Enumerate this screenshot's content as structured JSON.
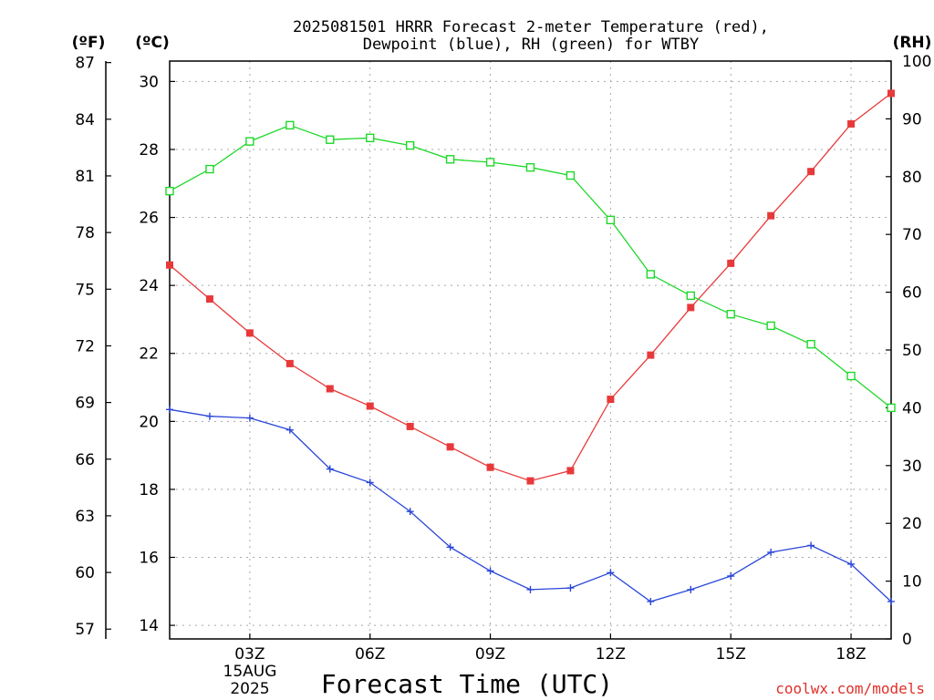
{
  "chart_data": {
    "type": "line",
    "title_line1": "2025081501 HRRR Forecast 2-meter Temperature (red),",
    "title_line2": "Dewpoint (blue), RH (green) for WTBY",
    "unit_f": "(ºF)",
    "unit_c": "(ºC)",
    "unit_rh": "(RH)",
    "xlabel": "Forecast Time (UTC)",
    "credit": "coolwx.com/models",
    "x_hours": [
      1,
      2,
      3,
      4,
      5,
      6,
      7,
      8,
      9,
      10,
      11,
      12,
      13,
      14,
      15,
      16,
      17,
      18,
      19
    ],
    "xlim": [
      1,
      19
    ],
    "x_ticks": [
      {
        "hour": 3,
        "label": "03Z"
      },
      {
        "hour": 6,
        "label": "06Z"
      },
      {
        "hour": 9,
        "label": "09Z"
      },
      {
        "hour": 12,
        "label": "12Z"
      },
      {
        "hour": 15,
        "label": "15Z"
      },
      {
        "hour": 18,
        "label": "18Z"
      }
    ],
    "date_label_1": "15AUG",
    "date_label_2": "2025",
    "c_ticks": [
      "14",
      "16",
      "18",
      "20",
      "22",
      "24",
      "26",
      "28",
      "30"
    ],
    "f_ticks": [
      "57",
      "60",
      "63",
      "66",
      "69",
      "72",
      "75",
      "78",
      "81",
      "84",
      "87"
    ],
    "rh_ticks": [
      "0",
      "10",
      "20",
      "30",
      "40",
      "50",
      "60",
      "70",
      "80",
      "90",
      "100"
    ],
    "c_lim": [
      13.6,
      30.6
    ],
    "rh_lim": [
      0,
      100
    ],
    "grid": true,
    "series": [
      {
        "key": "temperature",
        "unit": "C",
        "color": "#e8393a",
        "marker": "filled-square",
        "values": [
          24.6,
          23.6,
          22.6,
          21.7,
          20.96,
          20.45,
          19.85,
          19.25,
          18.65,
          18.25,
          18.55,
          20.65,
          21.95,
          23.35,
          24.65,
          26.05,
          27.35,
          28.75,
          29.65
        ]
      },
      {
        "key": "dewpoint",
        "unit": "C",
        "color": "#2b46d8",
        "marker": "plus",
        "values": [
          20.35,
          20.15,
          20.1,
          19.75,
          18.6,
          18.2,
          17.35,
          16.3,
          15.6,
          15.05,
          15.1,
          15.55,
          14.7,
          15.05,
          15.45,
          16.15,
          16.35,
          15.8,
          14.7
        ]
      },
      {
        "key": "rh",
        "unit": "%",
        "color": "#1fd82a",
        "marker": "open-square",
        "values": [
          77.5,
          81.3,
          86.1,
          88.9,
          86.4,
          86.7,
          85.4,
          83.0,
          82.5,
          81.6,
          80.2,
          72.5,
          63.1,
          59.4,
          56.2,
          54.2,
          51.0,
          45.5,
          40.0
        ]
      }
    ]
  }
}
